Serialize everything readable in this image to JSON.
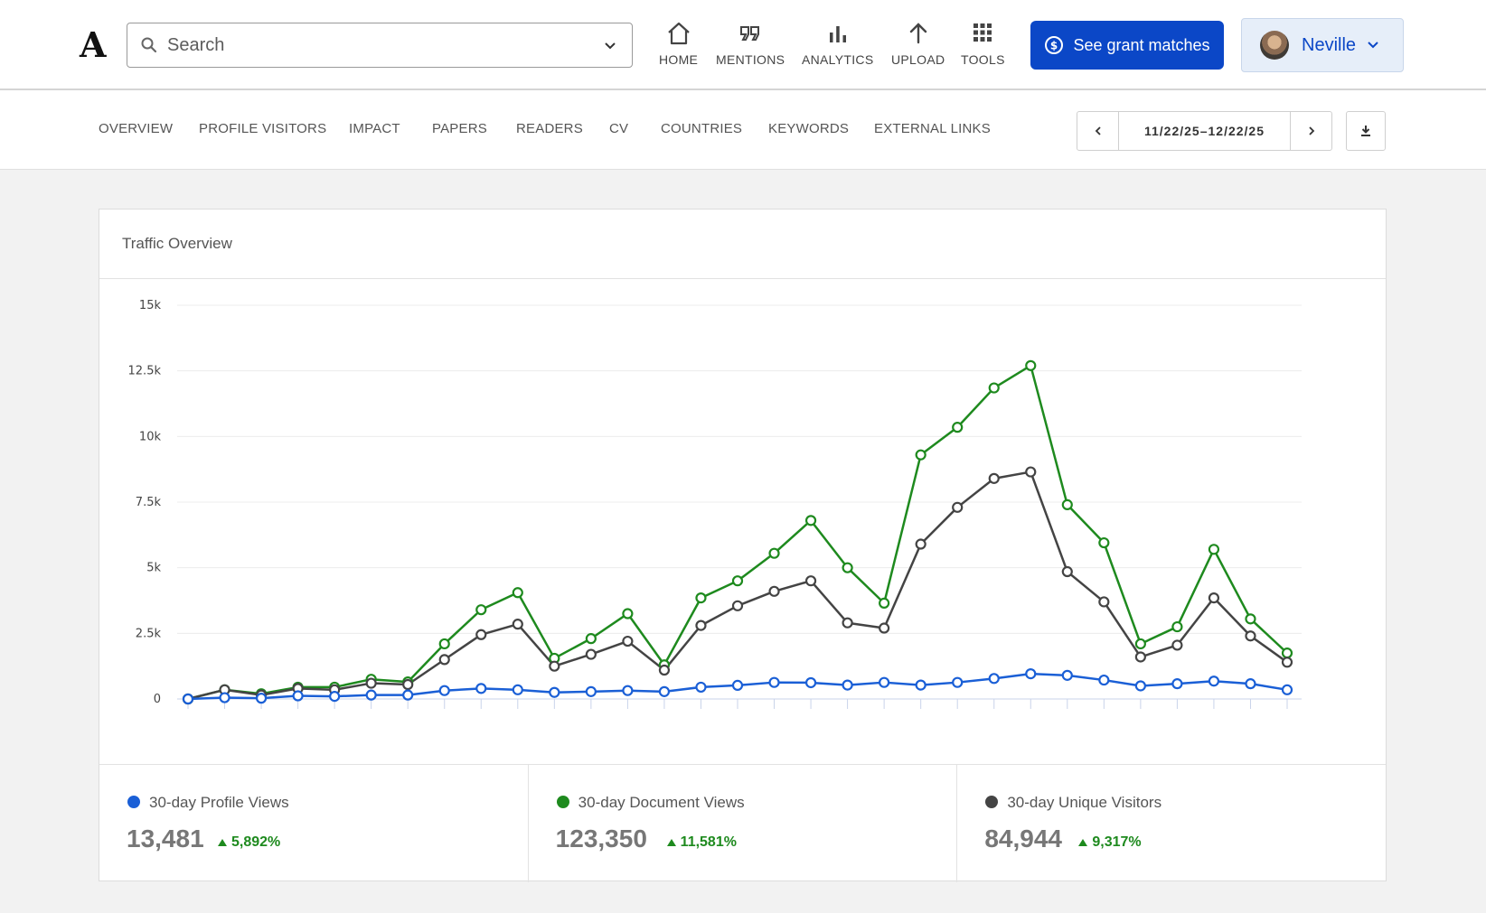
{
  "header": {
    "logo": "A",
    "search_placeholder": "Search",
    "nav": [
      {
        "label": "HOME",
        "icon": "home-icon"
      },
      {
        "label": "MENTIONS",
        "icon": "quote-icon"
      },
      {
        "label": "ANALYTICS",
        "icon": "bar-chart-icon"
      },
      {
        "label": "UPLOAD",
        "icon": "upload-arrow-icon"
      },
      {
        "label": "TOOLS",
        "icon": "grid-icon"
      }
    ],
    "grant_button": "See grant matches",
    "user_name": "Neville"
  },
  "subnav": {
    "tabs": [
      "OVERVIEW",
      "PROFILE VISITORS",
      "IMPACT",
      "PAPERS",
      "READERS",
      "CV",
      "COUNTRIES",
      "KEYWORDS",
      "EXTERNAL LINKS"
    ],
    "date_range": "11/22/25–12/22/25"
  },
  "card": {
    "title": "Traffic Overview"
  },
  "colors": {
    "accent": "#0b47c7",
    "profile": "#1a5fd6",
    "document": "#1e8a1e",
    "unique": "#444444",
    "positive": "#1e8a1e"
  },
  "chart_data": {
    "type": "line",
    "ylim": [
      0,
      15000
    ],
    "y_ticks": [
      0,
      2500,
      5000,
      7500,
      10000,
      12500,
      15000
    ],
    "y_tick_labels": [
      "0",
      "2.5k",
      "5k",
      "7.5k",
      "10k",
      "12.5k",
      "15k"
    ],
    "grid": true,
    "series": [
      {
        "name": "30-day Document Views",
        "color": "#1e8a1e",
        "values": [
          0,
          350,
          200,
          450,
          450,
          750,
          650,
          2100,
          3400,
          4050,
          1550,
          2300,
          3250,
          1300,
          3850,
          4500,
          5550,
          6800,
          5000,
          3650,
          9300,
          10350,
          11850,
          12700,
          7400,
          5950,
          2100,
          2750,
          5700,
          3050,
          1750
        ]
      },
      {
        "name": "30-day Unique Visitors",
        "color": "#444444",
        "values": [
          0,
          350,
          150,
          400,
          350,
          600,
          550,
          1500,
          2450,
          2850,
          1250,
          1700,
          2200,
          1100,
          2800,
          3550,
          4100,
          4500,
          2900,
          2700,
          5900,
          7300,
          8400,
          8650,
          4850,
          3700,
          1600,
          2050,
          3850,
          2400,
          1400
        ]
      },
      {
        "name": "30-day Profile Views",
        "color": "#1a5fd6",
        "values": [
          0,
          50,
          30,
          120,
          100,
          150,
          150,
          320,
          400,
          350,
          250,
          280,
          320,
          280,
          450,
          520,
          630,
          620,
          530,
          630,
          530,
          630,
          780,
          960,
          900,
          720,
          500,
          580,
          680,
          580,
          350
        ]
      }
    ]
  },
  "stats": [
    {
      "label": "30-day Profile Views",
      "value": "13,481",
      "delta": "5,892%",
      "color": "#1a5fd6"
    },
    {
      "label": "30-day Document Views",
      "value": "123,350",
      "delta": "11,581%",
      "color": "#1e8a1e"
    },
    {
      "label": "30-day Unique Visitors",
      "value": "84,944",
      "delta": "9,317%",
      "color": "#444444"
    }
  ]
}
